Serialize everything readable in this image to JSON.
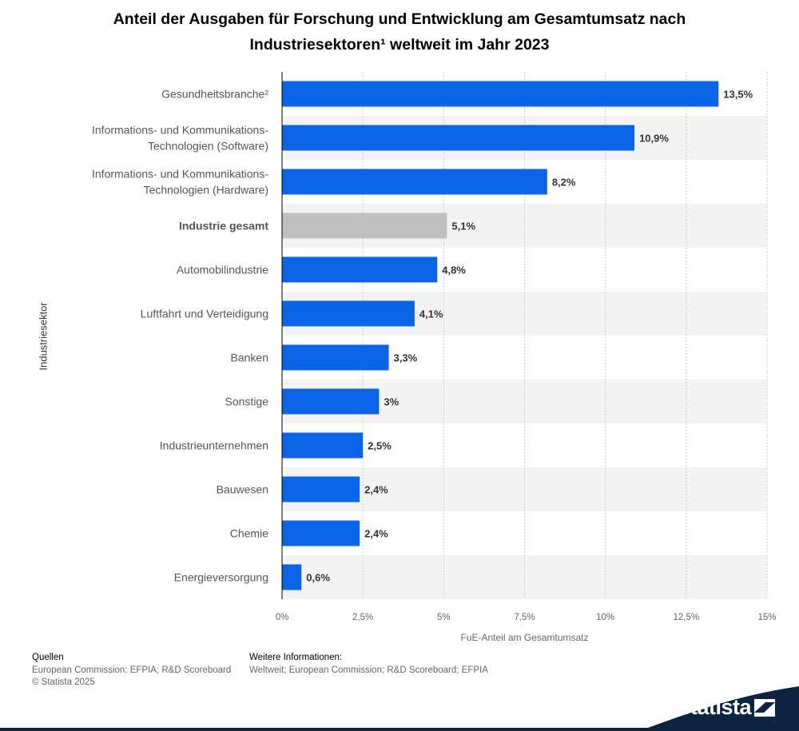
{
  "title_line1": "Anteil der Ausgaben für Forschung und Entwicklung am Gesamtumsatz nach",
  "title_line2": "Industriesektoren¹ weltweit im Jahr 2023",
  "chart_data": {
    "type": "bar",
    "orientation": "horizontal",
    "title": "Anteil der Ausgaben für Forschung und Entwicklung am Gesamtumsatz nach Industriesektoren¹ weltweit im Jahr 2023",
    "xlabel": "FuE-Anteil am Gesamtumsatz",
    "ylabel": "Industriesektor",
    "xlim": [
      0,
      15
    ],
    "xticks": [
      0,
      2.5,
      5,
      7.5,
      10,
      12.5,
      15
    ],
    "xtick_labels": [
      "0%",
      "2,5%",
      "5%",
      "7,5%",
      "10%",
      "12,5%",
      "15%"
    ],
    "categories": [
      [
        "Gesundheitsbranche²"
      ],
      [
        "Informations- und Kommunikations-",
        "Technologien (Software)"
      ],
      [
        "Informations- und Kommunikations-",
        "Technologien (Hardware)"
      ],
      [
        "Industrie gesamt"
      ],
      [
        "Automobilindustrie"
      ],
      [
        "Luftfahrt und Verteidigung"
      ],
      [
        "Banken"
      ],
      [
        "Sonstige"
      ],
      [
        "Industrieunternehmen"
      ],
      [
        "Bauwesen"
      ],
      [
        "Chemie"
      ],
      [
        "Energieversorgung"
      ]
    ],
    "values": [
      13.5,
      10.9,
      8.2,
      5.1,
      4.8,
      4.1,
      3.3,
      3,
      2.5,
      2.4,
      2.4,
      0.6
    ],
    "value_labels": [
      "13,5%",
      "10,9%",
      "8,2%",
      "5,1%",
      "4,8%",
      "4,1%",
      "3,3%",
      "3%",
      "2,5%",
      "2,4%",
      "2,4%",
      "0,6%"
    ],
    "highlighted_index": 3,
    "colors": {
      "bar": "#0b63e5",
      "highlight": "#c0c0c0",
      "band": "#f3f3f3",
      "grid": "#cccccc"
    },
    "grid": true
  },
  "sources": {
    "heading": "Quellen",
    "text": "European Commission; EFPIA; R&D Scoreboard",
    "copyright": "© Statista 2025"
  },
  "more_info": {
    "heading": "Weitere Informationen:",
    "text": "Weltweit; European Commission; R&D Scoreboard; EFPIA"
  },
  "brand": {
    "name": "statista",
    "color": "#0d2340"
  }
}
